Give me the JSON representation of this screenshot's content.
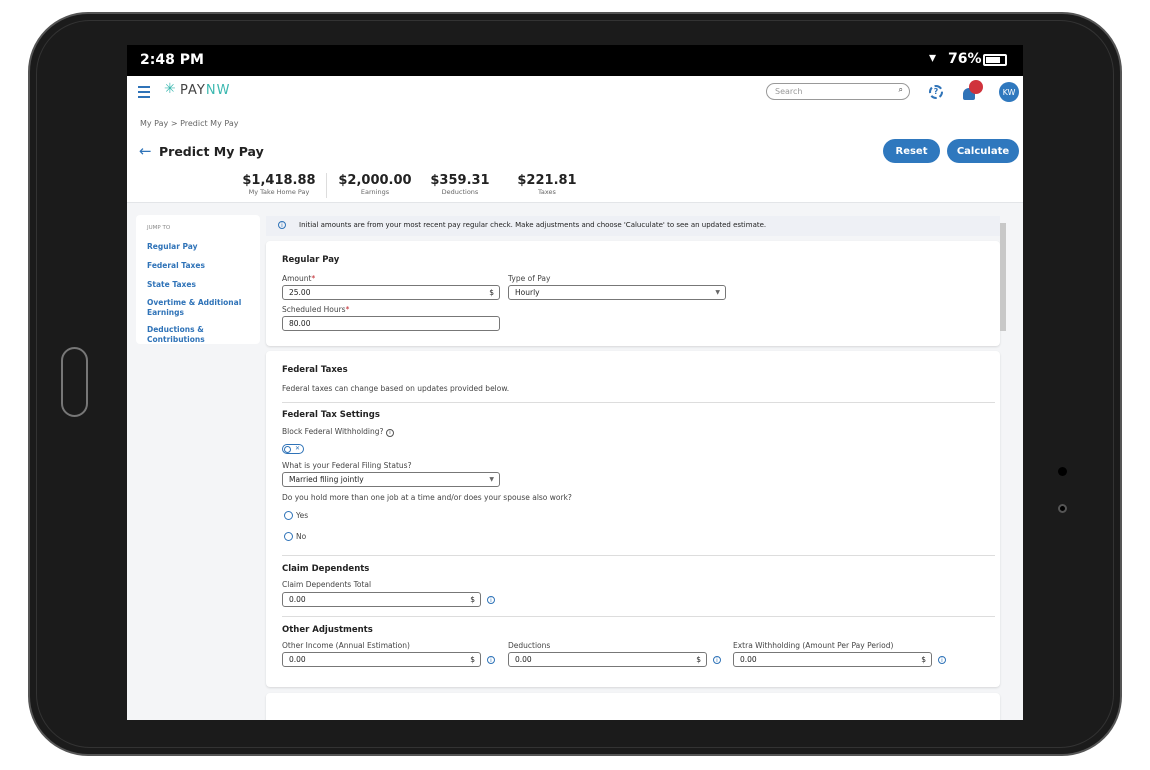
{
  "status_bar": {
    "time": "2:48 PM",
    "battery": "76%"
  },
  "header": {
    "logo_text_1": "PAY",
    "logo_text_2": "NW",
    "search_placeholder": "Search",
    "avatar_initials": "KW",
    "breadcrumb": "My Pay > Predict My Pay",
    "page_title": "Predict My Pay",
    "reset_label": "Reset",
    "calculate_label": "Calculate"
  },
  "summary": [
    {
      "value": "$1,418.88",
      "label": "My Take Home Pay"
    },
    {
      "value": "$2,000.00",
      "label": "Earnings"
    },
    {
      "value": "$359.31",
      "label": "Deductions"
    },
    {
      "value": "$221.81",
      "label": "Taxes"
    }
  ],
  "sidebar": {
    "title": "JUMP TO",
    "items": [
      {
        "label": "Regular Pay"
      },
      {
        "label": "Federal Taxes"
      },
      {
        "label": "State Taxes"
      },
      {
        "label": "Overtime & Additional Earnings"
      },
      {
        "label": "Deductions & Contributions"
      }
    ]
  },
  "notice": "Initial amounts are from your most recent pay regular check. Make adjustments and choose 'Caluculate' to see an updated estimate.",
  "regular_pay": {
    "title": "Regular Pay",
    "amount_label": "Amount",
    "amount_value": "25.00",
    "currency": "$",
    "type_label": "Type of Pay",
    "type_value": "Hourly",
    "hours_label": "Scheduled Hours",
    "hours_value": "80.00"
  },
  "federal": {
    "title": "Federal Taxes",
    "description": "Federal taxes can change based on updates provided below.",
    "settings_title": "Federal Tax Settings",
    "block_label": "Block Federal Withholding?",
    "block_enabled": false,
    "filing_label": "What is your Federal Filing Status?",
    "filing_value": "Married filing jointly",
    "multi_job_label": "Do you hold more than one job at a time and/or does your spouse also work?",
    "yes_label": "Yes",
    "no_label": "No",
    "dependents_title": "Claim Dependents",
    "dependents_label": "Claim Dependents Total",
    "dependents_value": "0.00",
    "other_title": "Other Adjustments",
    "other_income_label": "Other Income (Annual Estimation)",
    "other_income_value": "0.00",
    "deductions_label": "Deductions",
    "deductions_value": "0.00",
    "extra_label": "Extra Withholding (Amount Per Pay Period)",
    "extra_value": "0.00"
  },
  "colors": {
    "accent": "#2f78be",
    "notification": "#d0323c",
    "logo": "#3bb8b0"
  }
}
